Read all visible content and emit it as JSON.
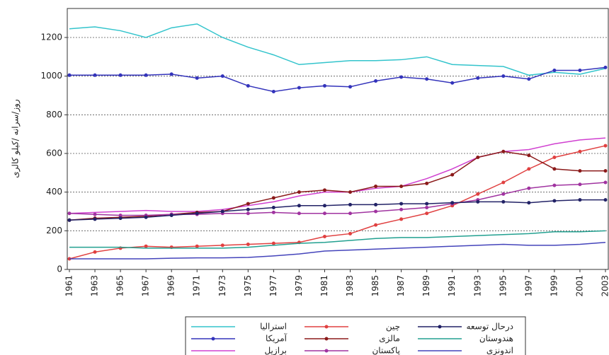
{
  "chart_data": {
    "type": "line",
    "y_label": "روز/سرانه /کیلو کالری",
    "x": [
      1961,
      1963,
      1965,
      1967,
      1969,
      1971,
      1973,
      1975,
      1977,
      1979,
      1981,
      1983,
      1985,
      1987,
      1989,
      1991,
      1993,
      1995,
      1997,
      1999,
      2001,
      2003
    ],
    "xlim": [
      1961,
      2003
    ],
    "xticks": [
      1961,
      1963,
      1965,
      1967,
      1969,
      1971,
      1973,
      1975,
      1977,
      1979,
      1981,
      1983,
      1985,
      1987,
      1989,
      1991,
      1993,
      1995,
      1997,
      1999,
      2001,
      2003
    ],
    "ylim": [
      0,
      1350
    ],
    "yticks": [
      0,
      200,
      400,
      600,
      800,
      1000,
      1200
    ],
    "grid": true,
    "series": [
      {
        "name": "استرالیا",
        "color": "#33c4cc",
        "marker": false,
        "values": [
          1245,
          1255,
          1235,
          1200,
          1250,
          1270,
          1200,
          1150,
          1110,
          1060,
          1070,
          1080,
          1080,
          1085,
          1100,
          1060,
          1055,
          1050,
          1005,
          1020,
          1010,
          1040
        ]
      },
      {
        "name": "آمریکا",
        "color": "#3333bb",
        "marker": true,
        "values": [
          1005,
          1005,
          1005,
          1005,
          1010,
          990,
          1000,
          950,
          920,
          940,
          950,
          945,
          975,
          995,
          985,
          965,
          990,
          1000,
          985,
          1030,
          1030,
          1045
        ]
      },
      {
        "name": "برازیل",
        "color": "#d040d0",
        "marker": false,
        "values": [
          290,
          295,
          300,
          305,
          300,
          300,
          310,
          330,
          350,
          380,
          400,
          400,
          420,
          430,
          470,
          520,
          580,
          610,
          620,
          650,
          670,
          680
        ]
      },
      {
        "name": "چین",
        "color": "#e04040",
        "marker": true,
        "values": [
          55,
          90,
          110,
          120,
          115,
          120,
          125,
          130,
          135,
          140,
          170,
          185,
          230,
          260,
          290,
          330,
          390,
          450,
          520,
          580,
          610,
          640
        ]
      },
      {
        "name": "مالزی",
        "color": "#8b1a1a",
        "marker": true,
        "values": [
          255,
          265,
          270,
          275,
          285,
          295,
          300,
          340,
          370,
          400,
          410,
          400,
          430,
          430,
          445,
          490,
          580,
          610,
          590,
          520,
          510,
          510
        ]
      },
      {
        "name": "پاکستان",
        "color": "#a033a0",
        "marker": true,
        "values": [
          290,
          285,
          280,
          280,
          285,
          285,
          290,
          290,
          295,
          290,
          290,
          290,
          300,
          310,
          320,
          340,
          360,
          390,
          420,
          435,
          440,
          450
        ]
      },
      {
        "name": "درحال توسعه",
        "color": "#222266",
        "marker": true,
        "values": [
          255,
          260,
          265,
          270,
          280,
          290,
          300,
          310,
          320,
          330,
          330,
          335,
          335,
          340,
          340,
          345,
          350,
          350,
          345,
          355,
          360,
          360
        ]
      },
      {
        "name": "هندوستان",
        "color": "#22a090",
        "marker": false,
        "values": [
          115,
          115,
          115,
          110,
          110,
          110,
          110,
          115,
          125,
          135,
          140,
          150,
          160,
          165,
          165,
          170,
          175,
          180,
          185,
          195,
          195,
          200
        ]
      },
      {
        "name": "اندونزی",
        "color": "#4444bb",
        "marker": false,
        "values": [
          55,
          55,
          55,
          55,
          58,
          60,
          60,
          62,
          70,
          80,
          95,
          100,
          105,
          110,
          115,
          120,
          125,
          130,
          125,
          125,
          130,
          140
        ]
      }
    ]
  }
}
